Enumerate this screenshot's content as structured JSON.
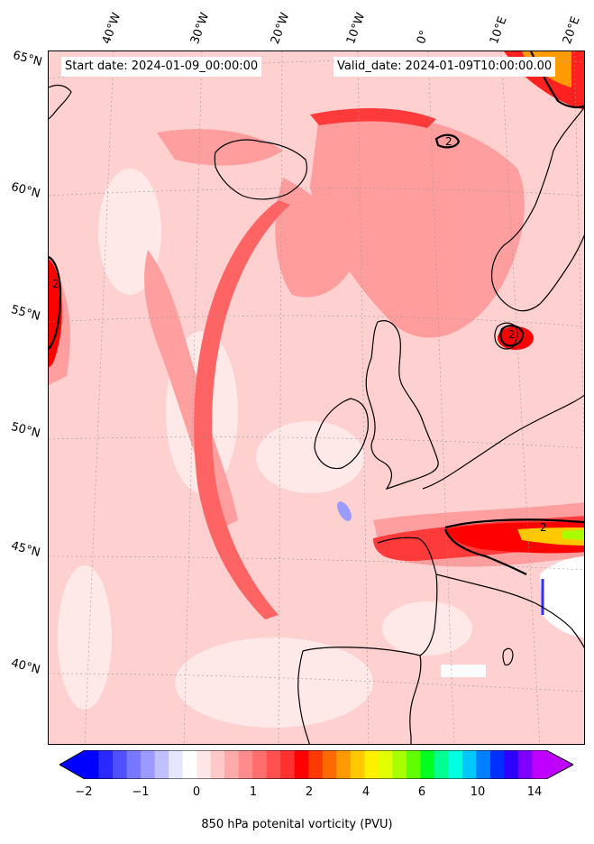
{
  "map": {
    "title_start": "Start date: 2024-01-09_00:00:00",
    "title_valid": "Valid_date: 2024-01-09T10:00:00.00",
    "longitude_labels": [
      "40°W",
      "30°W",
      "20°W",
      "10°W",
      "0°",
      "10°E",
      "20°E"
    ],
    "latitude_labels": [
      "65°N",
      "60°N",
      "55°N",
      "50°N",
      "45°N",
      "40°N"
    ],
    "contour_label": "2",
    "variable": "850 hPa potential vorticity",
    "colors": {
      "background_pv": "#ffd0d0",
      "band_pv": "#ff7070",
      "strong_pv": "#ff0000",
      "coast": "#000000"
    }
  },
  "colorbar": {
    "label": "850 hPa potenital vorticity (PVU)",
    "tick_labels": [
      "−2",
      "−1",
      "0",
      "1",
      "2",
      "4",
      "6",
      "10",
      "14"
    ],
    "tick_values": [
      -2,
      -1,
      0,
      1,
      2,
      4,
      6,
      10,
      14
    ],
    "colors": [
      "#0000ff",
      "#2828ff",
      "#5050ff",
      "#7878ff",
      "#9b9bff",
      "#c0c0ff",
      "#e6e6ff",
      "#ffffff",
      "#ffe6e6",
      "#ffc8c8",
      "#ffaaaa",
      "#ff8c8c",
      "#ff6e6e",
      "#ff5050",
      "#ff3030",
      "#ff0000",
      "#ff3a00",
      "#ff6a00",
      "#ff9a00",
      "#ffc800",
      "#fff000",
      "#e0ff00",
      "#a8ff00",
      "#60ff00",
      "#00ff20",
      "#00ff90",
      "#00ffe0",
      "#00c8ff",
      "#0080ff",
      "#0030ff",
      "#3000ff",
      "#8000ff",
      "#c000ff"
    ]
  }
}
